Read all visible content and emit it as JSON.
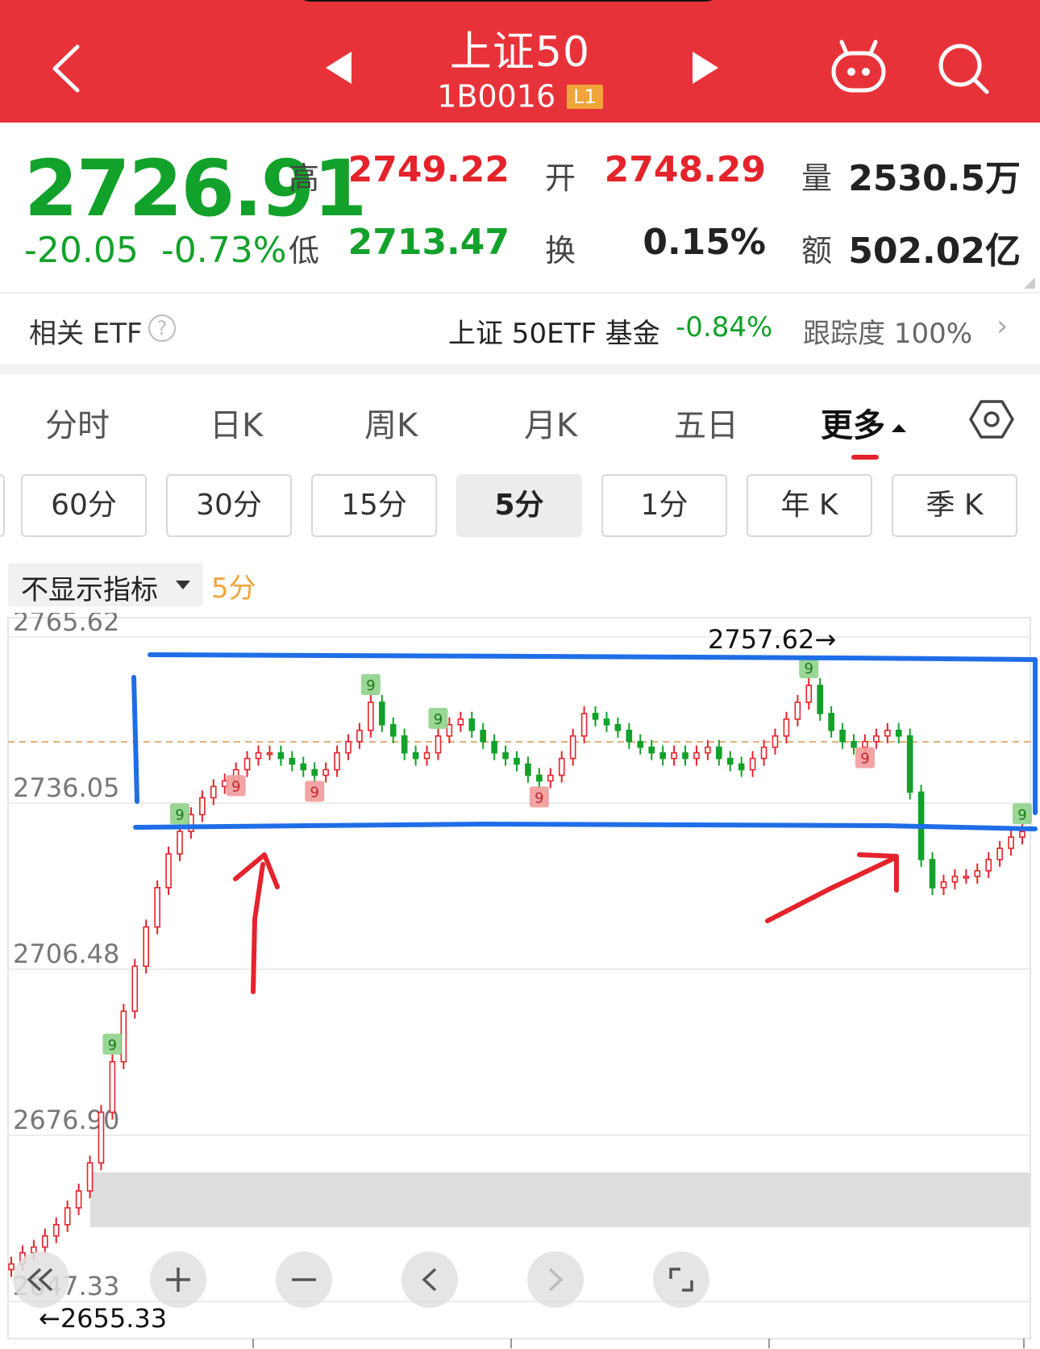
{
  "header": {
    "title": "上证50",
    "code": "1B0016",
    "level": "L1",
    "bg_color": "#e8323a"
  },
  "quote": {
    "price": "2726.91",
    "change": "-20.05",
    "change_pct": "-0.73%",
    "high_label": "高",
    "high": "2749.22",
    "low_label": "低",
    "low": "2713.47",
    "open_label": "开",
    "open": "2748.29",
    "turnover_label": "换",
    "turnover": "0.15%",
    "volume_label": "量",
    "volume": "2530.5万",
    "amount_label": "额",
    "amount": "502.02亿",
    "up_color": "#e5232b",
    "down_color": "#12a12a"
  },
  "etf": {
    "label": "相关 ETF",
    "help_icon": "question-circle-icon",
    "name": "上证 50ETF 基金",
    "change": "-0.84%",
    "tracking": "跟踪度  100%",
    "arrow_icon": "chevron-right-icon"
  },
  "tabs": [
    {
      "label": "分时"
    },
    {
      "label": "日K"
    },
    {
      "label": "周K"
    },
    {
      "label": "月K"
    },
    {
      "label": "五日"
    },
    {
      "label": "更多"
    }
  ],
  "periods": [
    {
      "label": "60分"
    },
    {
      "label": "30分"
    },
    {
      "label": "15分"
    },
    {
      "label": "5分"
    },
    {
      "label": "1分"
    },
    {
      "label": "年 K"
    },
    {
      "label": "季 K"
    }
  ],
  "indicator": {
    "label": "不显示指标",
    "period": "5分"
  },
  "chart_data": {
    "type": "candlestick",
    "interval": "5分",
    "y_ticks": [
      "2765.62",
      "2736.05",
      "2706.48",
      "2676.90",
      "2647.33"
    ],
    "ylim": [
      2647.33,
      2765.62
    ],
    "high_annotation": "2757.62→",
    "low_annotation": "←2655.33",
    "reference_price": 2746.96,
    "up_color": "#e5232b",
    "down_color": "#12a12a",
    "price_path": [
      2654,
      2656,
      2657,
      2659,
      2661,
      2664,
      2667,
      2672,
      2681,
      2690,
      2699,
      2707,
      2714,
      2721,
      2727,
      2731,
      2734,
      2737,
      2739,
      2740,
      2742,
      2744,
      2745,
      2745,
      2744,
      2743,
      2742,
      2741,
      2742,
      2745,
      2747,
      2749,
      2754,
      2750,
      2748,
      2745,
      2744,
      2745,
      2748,
      2750,
      2751,
      2749,
      2747,
      2745,
      2744,
      2743,
      2741,
      2740,
      2741,
      2744,
      2748,
      2752,
      2751,
      2750,
      2749,
      2747,
      2746,
      2745,
      2744,
      2745,
      2744,
      2745,
      2746,
      2744,
      2743,
      2742,
      2744,
      2746,
      2748,
      2751,
      2754,
      2757,
      2752,
      2749,
      2747,
      2746,
      2747,
      2748,
      2749,
      2748,
      2738,
      2726,
      2721,
      2722,
      2723,
      2723,
      2724,
      2726,
      2728,
      2730,
      2731
    ],
    "td_markers": [
      {
        "i": 15,
        "label": "9",
        "kind": "green"
      },
      {
        "i": 32,
        "label": "9",
        "kind": "green"
      },
      {
        "i": 38,
        "label": "9",
        "kind": "green"
      },
      {
        "i": 71,
        "label": "9",
        "kind": "green"
      },
      {
        "i": 90,
        "label": "9",
        "kind": "green"
      },
      {
        "i": 9,
        "label": "9",
        "kind": "green"
      },
      {
        "i": 20,
        "label": "9",
        "kind": "red"
      },
      {
        "i": 47,
        "label": "9",
        "kind": "red"
      },
      {
        "i": 76,
        "label": "9",
        "kind": "red"
      },
      {
        "i": 27,
        "label": "9",
        "kind": "red"
      }
    ],
    "grid": true
  },
  "controls": {
    "collapse": "double-chevron-left-icon",
    "zoom_in": "plus-icon",
    "zoom_out": "minus-icon",
    "prev": "chevron-left-icon",
    "next": "chevron-right-icon",
    "fullscreen": "fullscreen-icon"
  }
}
